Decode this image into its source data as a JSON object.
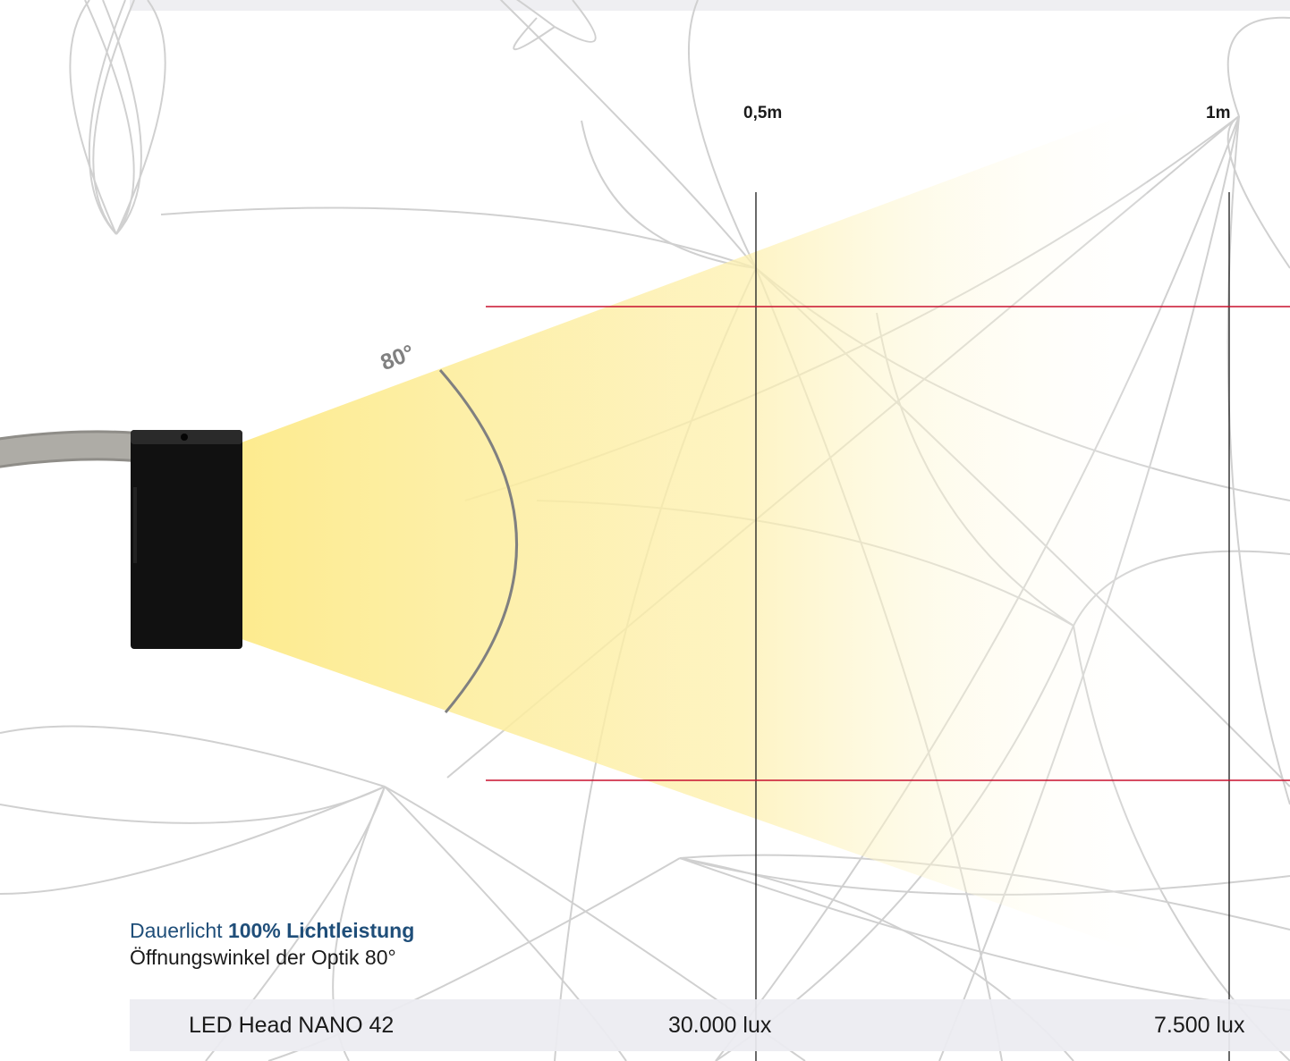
{
  "distances": [
    "0,5m",
    "1m"
  ],
  "angle_label": "80°",
  "caption": {
    "prefix": "Dauerlicht ",
    "emphasis": "100% Lichtleistung",
    "line2": "Öffnungswinkel der Optik 80°"
  },
  "spec_row": {
    "product": "LED Head NANO 42",
    "lux_05m": "30.000 lux",
    "lux_1m": "7.500 lux"
  },
  "colors": {
    "beam": "#fdeb8f",
    "marker_lines": "#c8102e",
    "caption_accent": "#1f4e79",
    "pattern": "#d0d0d0",
    "head_body": "#111111",
    "cable": "#a6a49e"
  },
  "icons": {
    "led_head": "black-led-head-with-cable"
  }
}
